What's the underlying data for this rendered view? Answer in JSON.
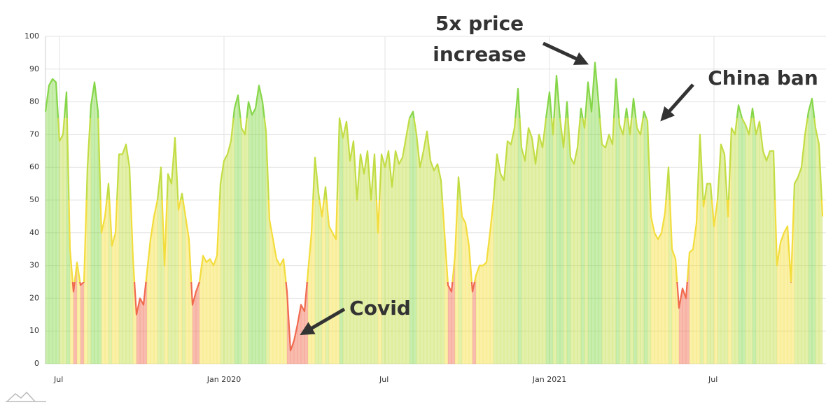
{
  "chart_data": {
    "type": "area",
    "categories": [
      null,
      null,
      null,
      null,
      "Jul",
      null,
      null,
      null,
      null,
      null,
      null,
      null,
      null,
      null,
      null,
      null,
      null,
      null,
      null,
      null,
      null,
      null,
      null,
      null,
      null,
      null,
      null,
      null,
      null,
      null,
      null,
      null,
      null,
      null,
      null,
      null,
      null,
      null,
      null,
      null,
      null,
      null,
      null,
      null,
      null,
      null,
      null,
      null,
      null,
      null,
      null,
      "Jan 2020",
      null,
      null,
      null,
      null,
      null,
      null,
      null,
      null,
      null,
      null,
      null,
      null,
      null,
      null,
      null,
      null,
      null,
      null,
      null,
      null,
      null,
      null,
      null,
      null,
      null,
      null,
      null,
      null,
      null,
      null,
      null,
      null,
      null,
      null,
      null,
      null,
      null,
      null,
      null,
      null,
      null,
      null,
      null,
      null,
      null,
      "Jul",
      null,
      null,
      null,
      null,
      null,
      null,
      null,
      null,
      null,
      null,
      null,
      null,
      null,
      null,
      null,
      null,
      null,
      null,
      null,
      null,
      null,
      null,
      null,
      null,
      null,
      null,
      null,
      null,
      null,
      null,
      null,
      null,
      null,
      null,
      null,
      null,
      null,
      null,
      null,
      null,
      null,
      null,
      null,
      null,
      null,
      null,
      "Jan 2021",
      null,
      null,
      null,
      null,
      null,
      null,
      null,
      null,
      null,
      null,
      null,
      null,
      null,
      null,
      null,
      null,
      null,
      null,
      null,
      null,
      null,
      null,
      null,
      null,
      null,
      null,
      null,
      null,
      null,
      null,
      null,
      null,
      null,
      null,
      null,
      null,
      null,
      null,
      null,
      null,
      null,
      null,
      null,
      null,
      null,
      null,
      "Jul",
      null,
      null,
      null,
      null,
      null,
      null,
      null,
      null,
      null,
      null,
      null,
      null,
      null,
      null,
      null,
      null,
      null,
      null,
      null,
      null,
      null,
      null,
      null,
      null,
      null,
      null,
      null,
      null,
      null,
      null,
      null
    ],
    "values": [
      77,
      85,
      87,
      86,
      68,
      70,
      83,
      35,
      22,
      31,
      24,
      25,
      60,
      79,
      86,
      77,
      40,
      45,
      55,
      36,
      40,
      64,
      64,
      67,
      60,
      32,
      15,
      20,
      18,
      28,
      38,
      45,
      50,
      60,
      30,
      58,
      55,
      69,
      47,
      52,
      45,
      38,
      18,
      22,
      25,
      33,
      31,
      32,
      30,
      33,
      55,
      62,
      64,
      68,
      78,
      82,
      72,
      70,
      80,
      76,
      78,
      85,
      80,
      71,
      44,
      38,
      32,
      30,
      32,
      22,
      4,
      7,
      12,
      18,
      16,
      28,
      40,
      63,
      52,
      45,
      54,
      42,
      40,
      38,
      75,
      69,
      74,
      62,
      68,
      50,
      64,
      58,
      65,
      50,
      64,
      40,
      64,
      60,
      65,
      54,
      65,
      61,
      63,
      69,
      75,
      77,
      70,
      60,
      65,
      71,
      62,
      59,
      61,
      56,
      40,
      24,
      22,
      33,
      57,
      45,
      43,
      36,
      22,
      27,
      30,
      30,
      31,
      40,
      50,
      64,
      58,
      56,
      68,
      67,
      72,
      84,
      66,
      62,
      72,
      69,
      61,
      70,
      66,
      75,
      83,
      70,
      88,
      75,
      66,
      80,
      63,
      61,
      66,
      78,
      72,
      86,
      77,
      92,
      80,
      67,
      66,
      70,
      67,
      87,
      73,
      70,
      78,
      70,
      81,
      72,
      70,
      77,
      74,
      45,
      40,
      38,
      40,
      46,
      60,
      35,
      32,
      17,
      23,
      20,
      34,
      35,
      43,
      70,
      48,
      55,
      55,
      42,
      50,
      67,
      64,
      45,
      72,
      70,
      79,
      75,
      73,
      70,
      78,
      70,
      74,
      65,
      62,
      65,
      65,
      30,
      37,
      40,
      42,
      25,
      55,
      57,
      60,
      70,
      77,
      81,
      72,
      67,
      45
    ],
    "colors": [
      "#f06a4e",
      "#f3dd3c",
      "#c2dd44",
      "#86d64a"
    ],
    "ylim": [
      0,
      100
    ],
    "yticks": [
      0,
      10,
      20,
      30,
      40,
      50,
      60,
      70,
      80,
      90,
      100
    ],
    "grid": true,
    "annotations": [
      {
        "lines": [
          "5x price",
          "increase"
        ]
      },
      {
        "lines": [
          "China ban"
        ]
      },
      {
        "lines": [
          "Covid"
        ]
      }
    ]
  }
}
